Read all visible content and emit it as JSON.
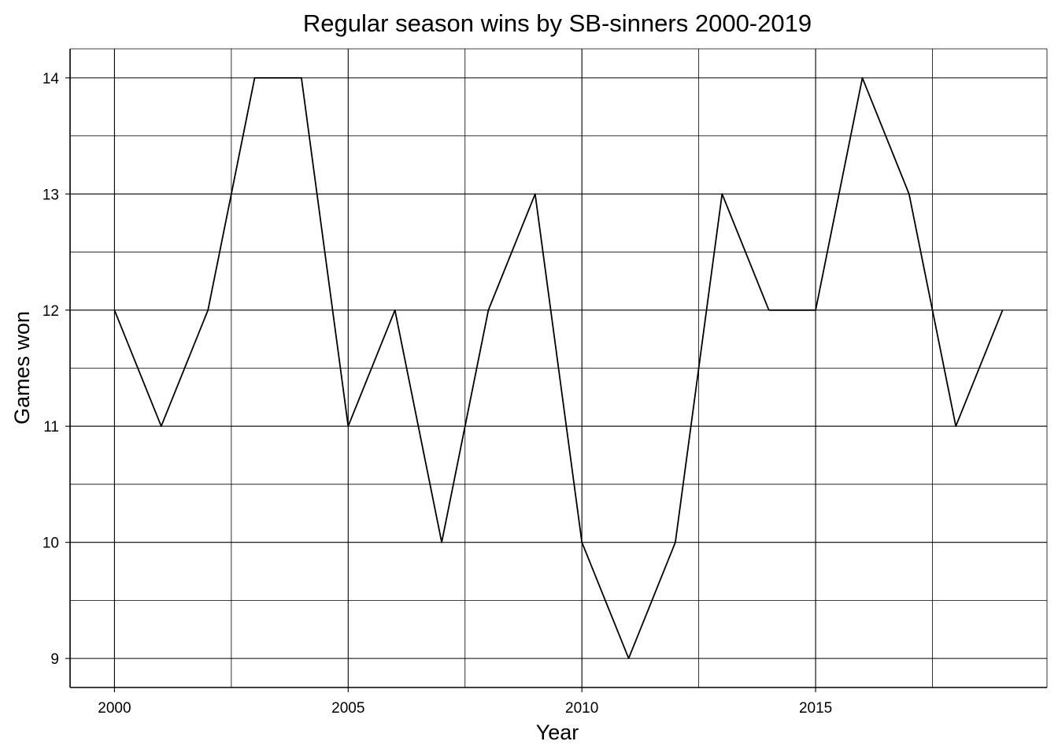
{
  "chart_data": {
    "type": "line",
    "title": "Regular season wins by SB-sinners 2000-2019",
    "xlabel": "Year",
    "ylabel": "Games won",
    "xlim": [
      1999.05,
      2019.95
    ],
    "ylim": [
      8.75,
      14.25
    ],
    "x_ticks": [
      2000,
      2005,
      2010,
      2015
    ],
    "x_minor_ticks": [
      2002.5,
      2007.5,
      2012.5,
      2017.5
    ],
    "y_ticks": [
      9,
      10,
      11,
      12,
      13,
      14
    ],
    "y_minor_ticks": [
      9.5,
      10.5,
      11.5,
      12.5,
      13.5
    ],
    "grid": true,
    "legend": "none",
    "x": [
      2000,
      2001,
      2002,
      2003,
      2004,
      2005,
      2006,
      2007,
      2008,
      2009,
      2010,
      2011,
      2012,
      2013,
      2014,
      2015,
      2016,
      2017,
      2018,
      2019
    ],
    "series": [
      {
        "values": [
          12,
          11,
          12,
          14,
          14,
          11,
          12,
          10,
          12,
          13,
          10,
          9,
          10,
          13,
          12,
          12,
          14,
          13,
          11,
          12
        ],
        "color": "#000000"
      }
    ]
  }
}
